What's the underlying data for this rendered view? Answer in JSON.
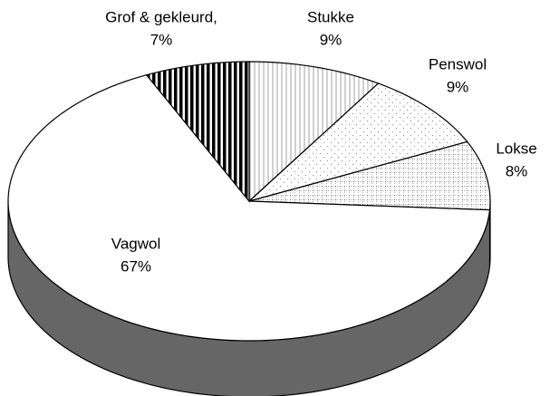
{
  "chart_data": {
    "type": "pie3d",
    "categories": [
      "Stukke",
      "Penswol",
      "Lokse",
      "Vagwol",
      "Grof & gekleurd,"
    ],
    "values": [
      9,
      9,
      8,
      67,
      7
    ],
    "value_labels": [
      "9%",
      "9%",
      "8%",
      "67%",
      "7%"
    ],
    "fills": [
      "url(#pat-vert)",
      "url(#pat-dots)",
      "url(#pat-grid)",
      "#ffffff",
      "url(#pat-black)"
    ],
    "side_color": "#666666"
  }
}
